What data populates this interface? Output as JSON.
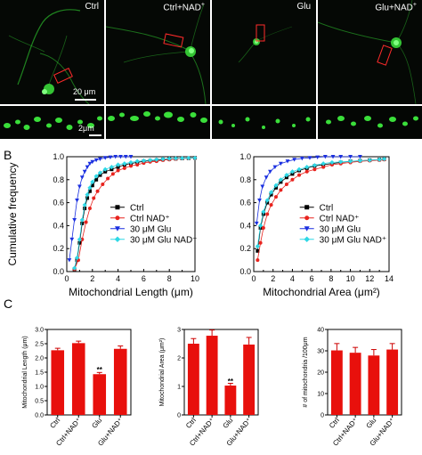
{
  "panels": {
    "A": "A",
    "B": "B",
    "C": "C"
  },
  "images": [
    {
      "label": "Ctrl",
      "nad": false
    },
    {
      "label": "Ctrl+NAD",
      "nad": true
    },
    {
      "label": "Glu",
      "nad": false
    },
    {
      "label": "Glu+NAD",
      "nad": true
    }
  ],
  "scale_bars": {
    "large": "20 μm",
    "small": "2μm"
  },
  "colors": {
    "ctrl": "#000000",
    "ctrl_nad": "#e8231e",
    "glu": "#1a2fe0",
    "glu_nad": "#2ed8e6",
    "bar": "#e8100c",
    "fluor": "#39e639",
    "roi": "#ff2b2b"
  },
  "chart_data": [
    {
      "type": "line",
      "xlabel": "Mitochondrial Length (μm)",
      "ylabel": "Cumulative frequency",
      "xlim": [
        0,
        10
      ],
      "ylim": [
        0,
        1.0
      ],
      "xticks": [
        "0",
        "2",
        "4",
        "6",
        "8",
        "10"
      ],
      "yticks": [
        "0.0",
        "0.2",
        "0.4",
        "0.6",
        "0.8",
        "1.0"
      ],
      "legend": [
        "Ctrl",
        "Ctrl NAD⁺",
        "30 μM Glu",
        "30 μM Glu NAD⁺"
      ],
      "legend_position": "middle-right",
      "series": [
        {
          "name": "Ctrl",
          "x": [
            0.6,
            0.8,
            1.0,
            1.2,
            1.4,
            1.6,
            1.8,
            2.0,
            2.3,
            2.6,
            3.0,
            3.5,
            4.0,
            4.5,
            5,
            5.5,
            6,
            6.5,
            7,
            7.5,
            8,
            8.5,
            9,
            9.5,
            10
          ],
          "y": [
            0.02,
            0.1,
            0.25,
            0.42,
            0.55,
            0.64,
            0.7,
            0.75,
            0.8,
            0.84,
            0.87,
            0.89,
            0.91,
            0.93,
            0.94,
            0.95,
            0.96,
            0.965,
            0.97,
            0.975,
            0.98,
            0.982,
            0.985,
            0.987,
            0.99
          ]
        },
        {
          "name": "Ctrl NAD⁺",
          "x": [
            0.6,
            0.9,
            1.2,
            1.5,
            1.8,
            2.1,
            2.4,
            2.8,
            3.2,
            3.6,
            4.0,
            4.5,
            5,
            5.5,
            6,
            6.5,
            7,
            7.5,
            8,
            8.5,
            9,
            9.5,
            10
          ],
          "y": [
            0.02,
            0.1,
            0.28,
            0.43,
            0.55,
            0.64,
            0.7,
            0.76,
            0.81,
            0.85,
            0.88,
            0.9,
            0.92,
            0.93,
            0.945,
            0.955,
            0.96,
            0.97,
            0.975,
            0.98,
            0.985,
            0.988,
            0.99
          ]
        },
        {
          "name": "30 μM Glu",
          "x": [
            0.2,
            0.4,
            0.6,
            0.8,
            1.0,
            1.2,
            1.4,
            1.6,
            1.8,
            2.0,
            2.3,
            2.6,
            3.0,
            3.4,
            3.8,
            4.2,
            4.6,
            5.0
          ],
          "y": [
            0.1,
            0.28,
            0.45,
            0.62,
            0.74,
            0.82,
            0.87,
            0.91,
            0.94,
            0.955,
            0.97,
            0.98,
            0.99,
            0.995,
            1.0,
            1.0,
            1.0,
            1.0
          ]
        },
        {
          "name": "30 μM Glu NAD⁺",
          "x": [
            0.6,
            0.8,
            1.0,
            1.2,
            1.4,
            1.6,
            1.8,
            2.0,
            2.3,
            2.6,
            3.0,
            3.5,
            4.0,
            4.5,
            5,
            5.5,
            6,
            6.5,
            7,
            7.5,
            8,
            8.5,
            9,
            9.5,
            10
          ],
          "y": [
            0.03,
            0.12,
            0.28,
            0.45,
            0.58,
            0.67,
            0.73,
            0.78,
            0.83,
            0.86,
            0.89,
            0.91,
            0.93,
            0.94,
            0.95,
            0.96,
            0.965,
            0.97,
            0.975,
            0.98,
            0.983,
            0.985,
            0.987,
            0.989,
            0.99
          ]
        }
      ]
    },
    {
      "type": "line",
      "xlabel": "Mitochondrial Area (μm²)",
      "ylabel": "",
      "xlim": [
        0,
        14
      ],
      "ylim": [
        0,
        1.0
      ],
      "xticks": [
        "0",
        "2",
        "4",
        "6",
        "8",
        "10",
        "12",
        "14"
      ],
      "yticks": [
        "0.0",
        "0.2",
        "0.4",
        "0.6",
        "0.8",
        "1.0"
      ],
      "legend": [
        "Ctrl",
        "Ctrl NAD⁺",
        "30 μM Glu",
        "30 μM Glu NAD⁺"
      ],
      "legend_position": "middle-right",
      "series": [
        {
          "name": "Ctrl",
          "x": [
            0.4,
            0.7,
            1.0,
            1.4,
            1.8,
            2.3,
            2.8,
            3.4,
            4.0,
            4.7,
            5.5,
            6.3,
            7.2,
            8.1,
            9.0,
            10,
            11,
            12,
            13,
            13.5
          ],
          "y": [
            0.18,
            0.38,
            0.5,
            0.6,
            0.67,
            0.73,
            0.78,
            0.82,
            0.85,
            0.88,
            0.9,
            0.92,
            0.93,
            0.94,
            0.95,
            0.96,
            0.965,
            0.97,
            0.975,
            0.978
          ]
        },
        {
          "name": "Ctrl NAD⁺",
          "x": [
            0.4,
            0.7,
            1.0,
            1.4,
            1.8,
            2.3,
            2.8,
            3.4,
            4.0,
            4.7,
            5.5,
            6.3,
            7.2,
            8.1,
            9.0,
            10,
            11,
            12,
            13,
            13.5
          ],
          "y": [
            0.1,
            0.25,
            0.38,
            0.5,
            0.58,
            0.65,
            0.71,
            0.76,
            0.8,
            0.84,
            0.87,
            0.89,
            0.91,
            0.93,
            0.94,
            0.95,
            0.96,
            0.965,
            0.97,
            0.975
          ]
        },
        {
          "name": "30 μM Glu",
          "x": [
            0.3,
            0.6,
            0.9,
            1.3,
            1.7,
            2.2,
            2.8,
            3.5,
            4.2,
            5.0,
            5.8,
            6.6,
            7.4,
            8.2,
            9.0,
            10,
            11
          ],
          "y": [
            0.42,
            0.62,
            0.74,
            0.82,
            0.87,
            0.91,
            0.94,
            0.96,
            0.975,
            0.985,
            0.99,
            0.995,
            1.0,
            1.0,
            1.0,
            1.0,
            1.0
          ]
        },
        {
          "name": "30 μM Glu NAD⁺",
          "x": [
            0.4,
            0.7,
            1.0,
            1.4,
            1.8,
            2.3,
            2.8,
            3.4,
            4.0,
            4.7,
            5.5,
            6.3,
            7.2,
            8.1,
            9.0,
            10,
            11,
            12,
            13,
            13.5
          ],
          "y": [
            0.22,
            0.4,
            0.52,
            0.62,
            0.69,
            0.75,
            0.8,
            0.84,
            0.87,
            0.89,
            0.91,
            0.925,
            0.94,
            0.95,
            0.955,
            0.96,
            0.965,
            0.97,
            0.975,
            0.98
          ]
        }
      ]
    },
    {
      "type": "bar",
      "categories": [
        "Ctrl",
        "Ctrl+NAD⁺",
        "Glu",
        "Glu+NAD⁺"
      ],
      "values": [
        2.27,
        2.52,
        1.43,
        2.32
      ],
      "errors": [
        0.07,
        0.07,
        0.06,
        0.1
      ],
      "significance": [
        "",
        "",
        "**",
        ""
      ],
      "ylabel": "Mitochondrial Length (μm)",
      "ylim": [
        0,
        3.0
      ],
      "yticks": [
        "0.0",
        "0.5",
        "1.0",
        "1.5",
        "2.0",
        "2.5",
        "3.0"
      ]
    },
    {
      "type": "bar",
      "categories": [
        "Ctrl",
        "Ctrl+NAD⁺",
        "Glu",
        "Glu+NAD⁺"
      ],
      "values": [
        2.5,
        2.78,
        1.03,
        2.47
      ],
      "errors": [
        0.18,
        0.2,
        0.08,
        0.25
      ],
      "significance": [
        "",
        "",
        "**",
        ""
      ],
      "ylabel": "Mitochondrial Area (μm²)",
      "ylim": [
        0,
        3
      ],
      "yticks": [
        "0",
        "1",
        "2",
        "3"
      ]
    },
    {
      "type": "bar",
      "categories": [
        "Ctrl",
        "Ctrl+NAD⁺",
        "Glu",
        "Glu+NAD⁺"
      ],
      "values": [
        30.2,
        29.1,
        27.8,
        30.6
      ],
      "errors": [
        3.2,
        2.5,
        2.8,
        2.8
      ],
      "significance": [
        "",
        "",
        "",
        ""
      ],
      "ylabel": "# of mitochondria /100μm",
      "ylim": [
        0,
        40
      ],
      "yticks": [
        "0",
        "10",
        "20",
        "30",
        "40"
      ]
    }
  ]
}
